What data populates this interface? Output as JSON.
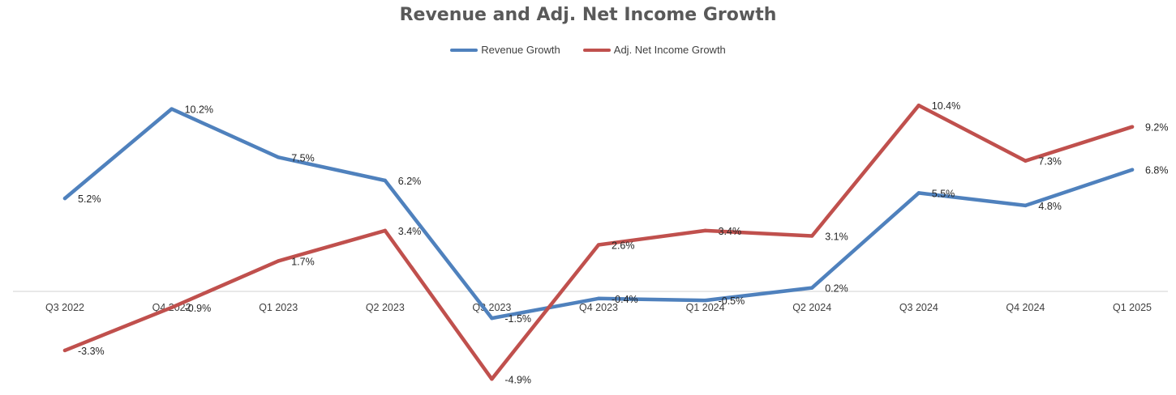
{
  "chart_data": {
    "type": "line",
    "title": "Revenue and Adj. Net Income Growth",
    "categories": [
      "Q3 2022",
      "Q4 2022",
      "Q1 2023",
      "Q2 2023",
      "Q3 2023",
      "Q4 2023",
      "Q1 2024",
      "Q2 2024",
      "Q3 2024",
      "Q4 2024",
      "Q1 2025"
    ],
    "series": [
      {
        "name": "Revenue Growth",
        "color": "#4F81BD",
        "values": [
          5.2,
          10.2,
          7.5,
          6.2,
          -1.5,
          -0.4,
          -0.5,
          0.2,
          5.5,
          4.8,
          6.8
        ],
        "labels": [
          "5.2%",
          "10.2%",
          "7.5%",
          "6.2%",
          "-1.5%",
          "-0.4%",
          "-0.5%",
          "0.2%",
          "5.5%",
          "4.8%",
          "6.8%"
        ]
      },
      {
        "name": "Adj. Net Income Growth",
        "color": "#C0504D",
        "values": [
          -3.3,
          -0.9,
          1.7,
          3.4,
          -4.9,
          2.6,
          3.4,
          3.1,
          10.4,
          7.3,
          9.2
        ],
        "labels": [
          "-3.3%",
          "-0.9%",
          "1.7%",
          "3.4%",
          "-4.9%",
          "2.6%",
          "3.4%",
          "3.1%",
          "10.4%",
          "7.3%",
          "9.2%"
        ]
      }
    ],
    "xlabel": "",
    "ylabel": "",
    "ylim": [
      -5,
      11
    ],
    "grid": false,
    "legend_position": "top"
  }
}
